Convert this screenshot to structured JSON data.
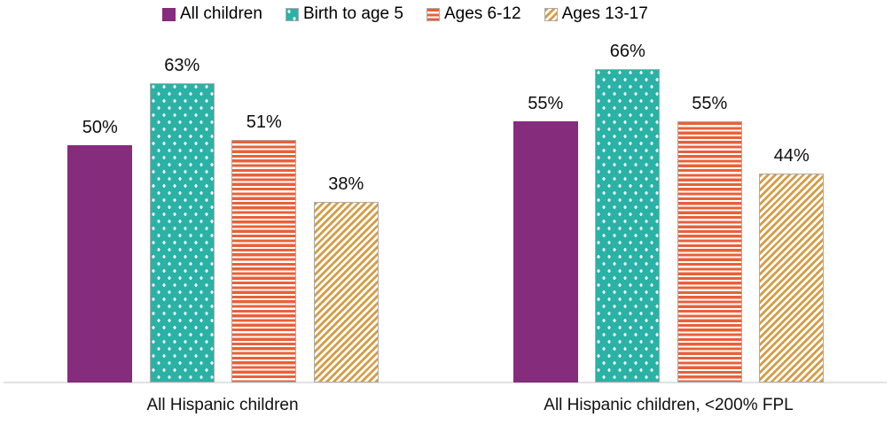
{
  "chart_data": {
    "type": "bar",
    "title": "",
    "categories": [
      "All Hispanic children",
      "All Hispanic children, <200% FPL"
    ],
    "series": [
      {
        "name": "All children",
        "pattern": "solid",
        "color": "#862C7D",
        "values": [
          50,
          55
        ]
      },
      {
        "name": "Birth to age 5",
        "pattern": "dots",
        "color": "#2AB2A6",
        "values": [
          63,
          66
        ]
      },
      {
        "name": "Ages 6-12",
        "pattern": "hstripes",
        "color": "#E96038",
        "values": [
          51,
          55
        ]
      },
      {
        "name": "Ages 13-17",
        "pattern": "diagonal",
        "color": "#D69C44",
        "values": [
          38,
          44
        ]
      }
    ],
    "value_suffix": "%",
    "value_labels_shown": true,
    "ylim": [
      0,
      80
    ],
    "legend_position": "top",
    "grid": false,
    "axis_line_color": "#E2E2E2",
    "pattern_border_color": "#ABABAB"
  }
}
